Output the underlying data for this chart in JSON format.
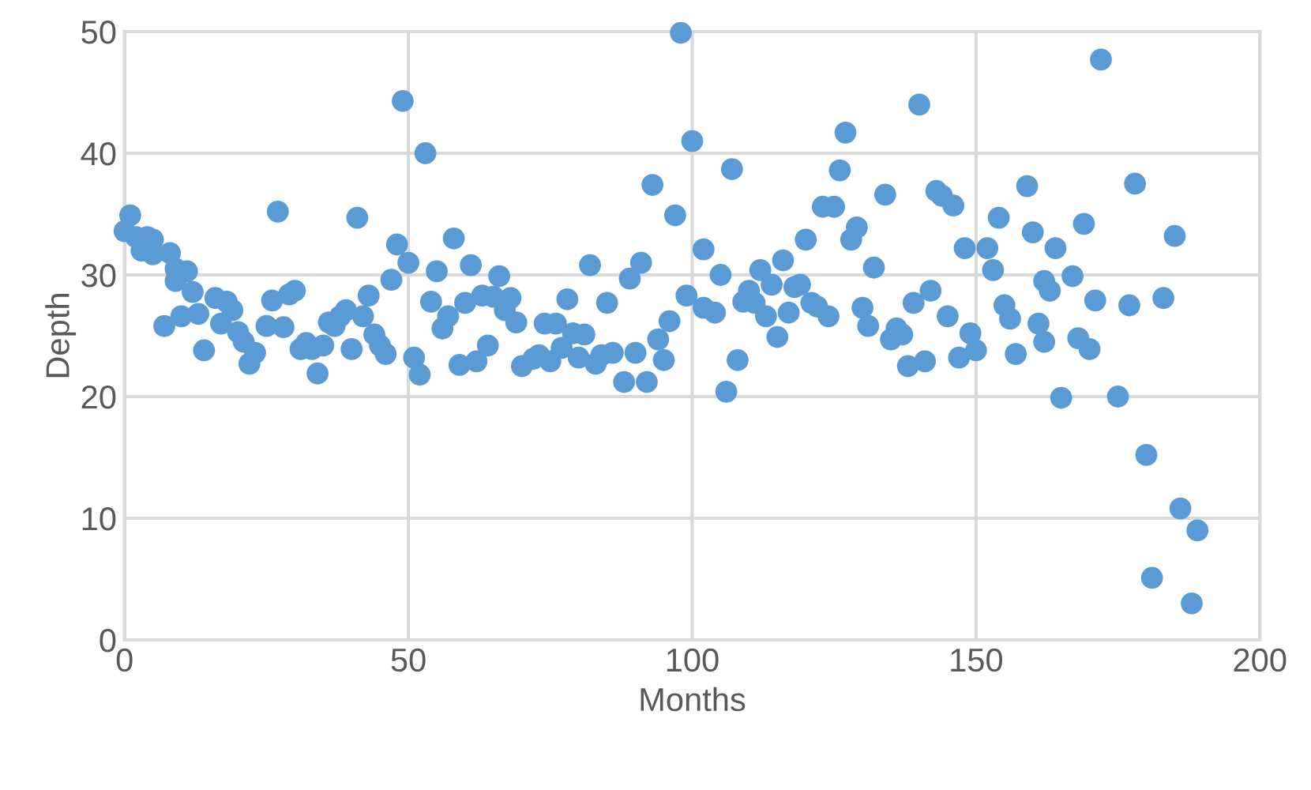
{
  "chart_data": {
    "type": "scatter",
    "xlabel": "Months",
    "ylabel": "Depth",
    "x": [
      0,
      1,
      2,
      3,
      4,
      5,
      5,
      6,
      7,
      8,
      9,
      9,
      10,
      11,
      12,
      13,
      14,
      16,
      17,
      18,
      19,
      20,
      21,
      22,
      23,
      25,
      26,
      27,
      28,
      29,
      30,
      31,
      32,
      33,
      34,
      35,
      36,
      37,
      38,
      39,
      40,
      41,
      42,
      43,
      44,
      45,
      46,
      47,
      48,
      49,
      50,
      51,
      52,
      53,
      54,
      55,
      56,
      57,
      58,
      59,
      60,
      61,
      62,
      63,
      64,
      65,
      66,
      67,
      68,
      69,
      70,
      72,
      73,
      74,
      75,
      76,
      77,
      78,
      79,
      80,
      81,
      82,
      83,
      84,
      85,
      86,
      88,
      89,
      90,
      91,
      92,
      93,
      94,
      95,
      96,
      97,
      98,
      99,
      100,
      102,
      102,
      104,
      105,
      106,
      107,
      108,
      109,
      110,
      111,
      112,
      113,
      114,
      115,
      116,
      117,
      118,
      119,
      120,
      121,
      122,
      123,
      124,
      125,
      126,
      127,
      128,
      129,
      130,
      131,
      132,
      134,
      135,
      136,
      137,
      138,
      139,
      140,
      141,
      142,
      143,
      144,
      145,
      146,
      147,
      148,
      149,
      150,
      152,
      153,
      154,
      155,
      156,
      157,
      159,
      160,
      161,
      162,
      162,
      163,
      164,
      165,
      167,
      168,
      169,
      170,
      171,
      172,
      175,
      177,
      178,
      180,
      181,
      183,
      185,
      186,
      188,
      189
    ],
    "series": [
      {
        "color": "#5b9bd5",
        "values": [
          33.6,
          34.9,
          33.1,
          32,
          33.1,
          31.7,
          32.9,
          null,
          25.8,
          31.8,
          30.5,
          29.5,
          26.6,
          30.3,
          28.6,
          26.8,
          23.8,
          28.1,
          26,
          27.8,
          27.1,
          25.3,
          24.5,
          22.7,
          23.6,
          25.8,
          27.9,
          35.2,
          25.7,
          28.4,
          28.7,
          23.9,
          24.4,
          23.9,
          21.9,
          24.2,
          26.1,
          25.8,
          26.6,
          27.1,
          23.9,
          34.7,
          26.6,
          28.3,
          25.1,
          24.2,
          23.5,
          29.6,
          32.5,
          44.3,
          31,
          23.2,
          21.8,
          40,
          27.8,
          30.3,
          25.6,
          26.6,
          33,
          22.6,
          27.7,
          30.8,
          22.9,
          28.3,
          24.2,
          28.2,
          29.9,
          27.1,
          28.1,
          26.1,
          22.5,
          23.1,
          23.4,
          26,
          22.9,
          26,
          24,
          28,
          25.2,
          23.2,
          25.1,
          30.8,
          22.7,
          23.4,
          27.7,
          23.6,
          21.2,
          29.7,
          23.6,
          31,
          21.2,
          37.4,
          24.7,
          23,
          26.2,
          34.9,
          49.9,
          28.3,
          41,
          27.3,
          32.1,
          26.9,
          30,
          20.4,
          38.7,
          23,
          27.8,
          28.7,
          27.7,
          30.4,
          26.6,
          29.2,
          24.9,
          31.2,
          26.9,
          29,
          29.2,
          32.9,
          27.7,
          27.4,
          35.6,
          26.6,
          35.6,
          38.6,
          41.7,
          32.9,
          33.9,
          27.3,
          25.8,
          30.6,
          36.6,
          24.7,
          25.6,
          25.1,
          22.5,
          27.7,
          44,
          22.9,
          28.7,
          36.9,
          36.5,
          26.6,
          35.7,
          23.2,
          32.2,
          25.2,
          23.8,
          32.2,
          30.4,
          34.7,
          27.5,
          26.4,
          23.5,
          37.3,
          33.5,
          26,
          24.5,
          29.5,
          28.7,
          32.2,
          19.9,
          29.9,
          24.8,
          34.2,
          23.9,
          27.9,
          47.7,
          20,
          27.5,
          37.5,
          15.2,
          5.1,
          28.1,
          33.2,
          10.8,
          3,
          9
        ]
      }
    ],
    "xlim": [
      0,
      200
    ],
    "xticks": [
      0,
      50,
      100,
      150,
      200
    ],
    "ylim": [
      0,
      50
    ],
    "yticks": [
      0,
      10,
      20,
      30,
      40,
      50
    ],
    "grid": true,
    "marker": "circle"
  }
}
